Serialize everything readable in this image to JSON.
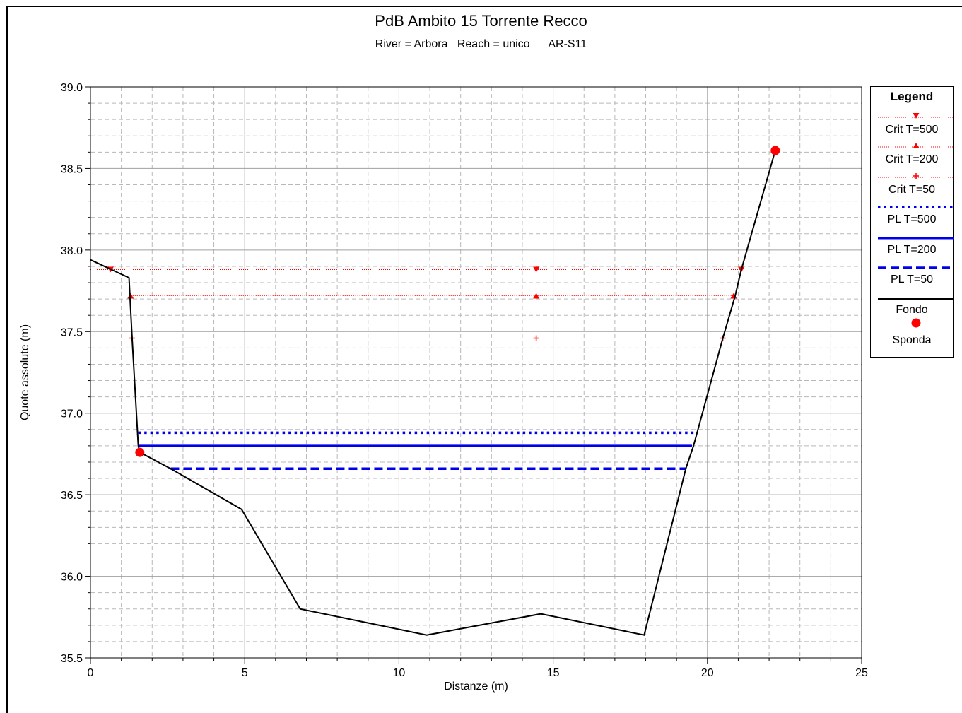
{
  "chart_data": {
    "type": "line",
    "title": "PdB Ambito 15 Torrente Recco",
    "subtitle": "River = Arbora   Reach = unico      AR-S11",
    "xlabel": "Distanze (m)",
    "ylabel": "Quote assolute (m)",
    "xlim": [
      0,
      25
    ],
    "ylim": [
      35.5,
      39.0
    ],
    "xticks": [
      "0",
      "5",
      "10",
      "15",
      "20",
      "25"
    ],
    "yticks": [
      "35.5",
      "36.0",
      "36.5",
      "37.0",
      "37.5",
      "38.0",
      "38.5",
      "39.0"
    ],
    "grid": true,
    "legend_title": "Legend",
    "legend_position": "right",
    "series": [
      {
        "name": "Crit T=500",
        "color": "#ff0000",
        "style": "dotted-thin",
        "marker": "triangle-down",
        "x": [
          0,
          21.1
        ],
        "y": [
          37.88,
          37.88
        ],
        "marker_x": [
          0.65,
          14.45,
          21.1
        ]
      },
      {
        "name": "Crit T=200",
        "color": "#ff0000",
        "style": "dotted-thin",
        "marker": "triangle-up",
        "x": [
          1.3,
          20.9
        ],
        "y": [
          37.72,
          37.72
        ],
        "marker_x": [
          1.3,
          14.45,
          20.85
        ]
      },
      {
        "name": "Crit T=50",
        "color": "#ff0000",
        "style": "dotted-thin",
        "marker": "plus",
        "x": [
          1.35,
          20.5
        ],
        "y": [
          37.46,
          37.46
        ],
        "marker_x": [
          1.35,
          14.45,
          20.5
        ]
      },
      {
        "name": "PL T=500",
        "color": "#0000ee",
        "style": "dotted-thick",
        "x": [
          1.55,
          19.55
        ],
        "y": [
          36.88,
          36.88
        ]
      },
      {
        "name": "PL T=200",
        "color": "#0000ee",
        "style": "solid-thick",
        "x": [
          1.55,
          19.5
        ],
        "y": [
          36.8,
          36.8
        ]
      },
      {
        "name": "PL T=50",
        "color": "#0000ee",
        "style": "dashed-thick",
        "x": [
          2.6,
          19.3
        ],
        "y": [
          36.66,
          36.66
        ]
      },
      {
        "name": "Fondo",
        "color": "#000000",
        "style": "solid",
        "x": [
          0,
          1.25,
          1.35,
          1.55,
          1.6,
          2.6,
          4.9,
          6.8,
          10.9,
          14.6,
          17.95,
          19.3,
          19.55,
          20.5,
          20.9,
          21.1,
          22.2
        ],
        "y": [
          37.94,
          37.83,
          37.46,
          36.8,
          36.76,
          36.66,
          36.41,
          35.8,
          35.64,
          35.77,
          35.64,
          36.66,
          36.8,
          37.46,
          37.72,
          37.88,
          38.61
        ]
      },
      {
        "name": "Sponda",
        "color": "#ff0000",
        "style": "marker-only",
        "marker": "circle",
        "x": [
          1.6,
          22.2
        ],
        "y": [
          36.76,
          38.61
        ]
      }
    ]
  }
}
